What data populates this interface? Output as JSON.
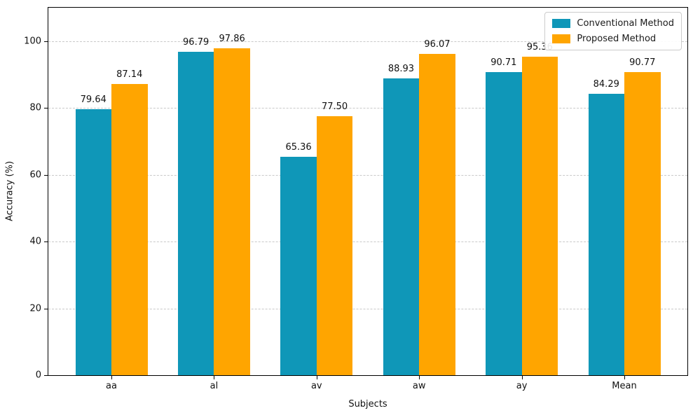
{
  "chart_data": {
    "type": "bar",
    "title": "",
    "xlabel": "Subjects",
    "ylabel": "Accuracy (%)",
    "categories": [
      "aa",
      "al",
      "av",
      "aw",
      "ay",
      "Mean"
    ],
    "series": [
      {
        "name": "Conventional Method",
        "color": "#0F97B8",
        "values": [
          79.64,
          96.79,
          65.36,
          88.93,
          90.71,
          84.29
        ]
      },
      {
        "name": "Proposed Method",
        "color": "#FFA500",
        "values": [
          87.14,
          97.86,
          77.5,
          96.07,
          95.36,
          90.77
        ]
      }
    ],
    "value_labels": [
      [
        "79.64",
        "96.79",
        "65.36",
        "88.93",
        "90.71",
        "84.29"
      ],
      [
        "87.14",
        "97.86",
        "77.50",
        "96.07",
        "95.36",
        "90.77"
      ]
    ],
    "ylim": [
      0,
      110
    ],
    "yticks": [
      0,
      20,
      40,
      60,
      80,
      100
    ],
    "grid": "horizontal-dashed",
    "legend_position": "upper-right"
  }
}
